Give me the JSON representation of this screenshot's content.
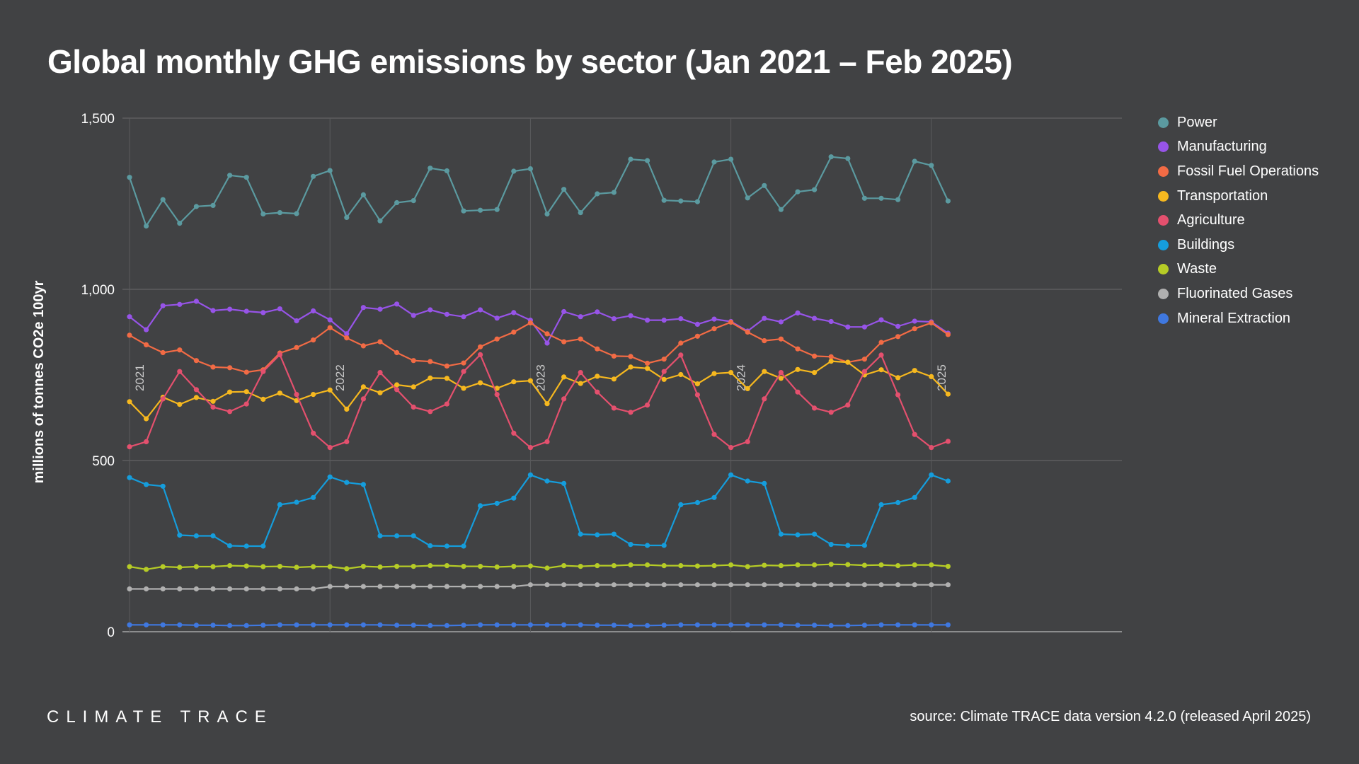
{
  "header": {
    "title": "Global monthly GHG emissions by sector (Jan 2021 – Feb 2025)"
  },
  "footer": {
    "brand": "CLIMATE TRACE",
    "source": "source: Climate TRACE data version 4.2.0 (released April 2025)"
  },
  "chart_data": {
    "type": "line",
    "title": "Global monthly GHG emissions by sector (Jan 2021 – Feb 2025)",
    "xlabel": "",
    "ylabel": "millions of tonnes CO2e 100yr",
    "ylim": [
      0,
      1500
    ],
    "yticks": [
      0,
      500,
      1000,
      1500
    ],
    "ytick_labels": [
      "0",
      "500",
      "1,000",
      "1,500"
    ],
    "grid": true,
    "legend_position": "right",
    "x_start": "2021-01",
    "x_end": "2025-02",
    "year_markers": [
      {
        "label": "2021",
        "month": "2021-01"
      },
      {
        "label": "2022",
        "month": "2022-01"
      },
      {
        "label": "2023",
        "month": "2023-01"
      },
      {
        "label": "2024",
        "month": "2024-01"
      },
      {
        "label": "2025",
        "month": "2025-01"
      }
    ],
    "series": [
      {
        "name": "Power",
        "color": "#5b9aa0",
        "values": [
          1327,
          1185,
          1262,
          1193,
          1242,
          1245,
          1333,
          1327,
          1220,
          1224,
          1221,
          1330,
          1347,
          1210,
          1276,
          1200,
          1253,
          1259,
          1354,
          1346,
          1229,
          1231,
          1233,
          1345,
          1352,
          1220,
          1292,
          1224,
          1279,
          1283,
          1380,
          1376,
          1260,
          1258,
          1256,
          1372,
          1380,
          1267,
          1303,
          1233,
          1285,
          1291,
          1387,
          1382,
          1266,
          1266,
          1262,
          1374,
          1362,
          1258
        ]
      },
      {
        "name": "Manufacturing",
        "color": "#9754e8",
        "values": [
          920,
          882,
          952,
          956,
          965,
          938,
          942,
          936,
          932,
          943,
          908,
          937,
          911,
          870,
          947,
          942,
          957,
          924,
          940,
          927,
          920,
          940,
          916,
          932,
          910,
          843,
          935,
          920,
          934,
          914,
          923,
          910,
          910,
          914,
          898,
          913,
          906,
          878,
          915,
          905,
          931,
          915,
          906,
          890,
          890,
          911,
          892,
          907,
          905,
          872
        ]
      },
      {
        "name": "Fossil Fuel Operations",
        "color": "#f26b45",
        "values": [
          866,
          838,
          815,
          823,
          792,
          773,
          771,
          758,
          765,
          814,
          830,
          852,
          888,
          858,
          835,
          847,
          815,
          792,
          789,
          776,
          785,
          832,
          855,
          875,
          902,
          870,
          847,
          855,
          826,
          805,
          804,
          784,
          796,
          843,
          863,
          885,
          904,
          875,
          850,
          855,
          826,
          805,
          803,
          787,
          796,
          845,
          862,
          885,
          902,
          868
        ]
      },
      {
        "name": "Transportation",
        "color": "#f6b81f",
        "values": [
          672,
          622,
          685,
          664,
          684,
          673,
          700,
          701,
          679,
          697,
          675,
          693,
          706,
          650,
          715,
          698,
          721,
          715,
          741,
          740,
          711,
          727,
          711,
          730,
          733,
          666,
          744,
          725,
          746,
          738,
          773,
          769,
          737,
          751,
          724,
          754,
          757,
          710,
          760,
          740,
          766,
          757,
          790,
          787,
          750,
          765,
          742,
          763,
          745,
          694
        ]
      },
      {
        "name": "Agriculture",
        "color": "#e4506e",
        "values": [
          540,
          555,
          680,
          760,
          707,
          656,
          643,
          665,
          760,
          809,
          693,
          580,
          538,
          555,
          680,
          757,
          707,
          656,
          643,
          665,
          760,
          809,
          693,
          580,
          538,
          555,
          680,
          757,
          700,
          653,
          641,
          662,
          760,
          808,
          692,
          576,
          538,
          555,
          680,
          757,
          700,
          653,
          641,
          662,
          760,
          808,
          692,
          576,
          538,
          556
        ]
      },
      {
        "name": "Buildings",
        "color": "#159ddc",
        "values": [
          450,
          430,
          425,
          282,
          280,
          280,
          251,
          250,
          250,
          371,
          378,
          392,
          452,
          436,
          430,
          280,
          280,
          280,
          251,
          250,
          250,
          368,
          375,
          390,
          458,
          440,
          433,
          285,
          283,
          285,
          255,
          252,
          252,
          371,
          377,
          392,
          458,
          440,
          433,
          285,
          283,
          285,
          255,
          252,
          252,
          371,
          377,
          392,
          458,
          440
        ]
      },
      {
        "name": "Waste",
        "color": "#b6cc26",
        "values": [
          190,
          182,
          190,
          188,
          190,
          190,
          193,
          192,
          190,
          191,
          188,
          190,
          190,
          184,
          191,
          189,
          191,
          191,
          193,
          193,
          191,
          191,
          189,
          191,
          192,
          186,
          193,
          191,
          193,
          193,
          195,
          195,
          193,
          193,
          192,
          193,
          195,
          190,
          194,
          193,
          195,
          195,
          197,
          196,
          194,
          195,
          193,
          195,
          195,
          191
        ]
      },
      {
        "name": "Fluorinated Gases",
        "color": "#b0b0b0",
        "values": [
          125,
          125,
          125,
          125,
          125,
          125,
          125,
          125,
          125,
          125,
          125,
          125,
          132,
          132,
          132,
          132,
          132,
          132,
          132,
          132,
          132,
          132,
          132,
          132,
          137,
          137,
          137,
          137,
          137,
          137,
          137,
          137,
          137,
          137,
          137,
          137,
          137,
          137,
          137,
          137,
          137,
          137,
          137,
          137,
          137,
          137,
          137,
          137,
          137,
          137
        ]
      },
      {
        "name": "Mineral Extraction",
        "color": "#3f78e0",
        "values": [
          20,
          20,
          20,
          20,
          19,
          19,
          18,
          18,
          19,
          20,
          20,
          20,
          20,
          20,
          20,
          20,
          19,
          19,
          18,
          18,
          19,
          20,
          20,
          20,
          20,
          20,
          20,
          20,
          19,
          19,
          18,
          18,
          19,
          20,
          20,
          20,
          20,
          20,
          20,
          20,
          19,
          19,
          18,
          18,
          19,
          20,
          20,
          20,
          20,
          20
        ]
      }
    ]
  }
}
